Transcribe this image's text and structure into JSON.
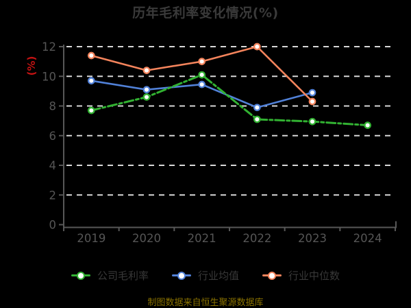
{
  "page": {
    "background": "#000000"
  },
  "footer": {
    "text": "制图数据来自恒生聚源数据库",
    "color": "#8a7200"
  },
  "colors": {
    "background": "#000000",
    "grid": "#d8d8d8",
    "axis": "#585858",
    "tick_label": "#565656",
    "title": "#3a3a3a",
    "legend_text": "#383838",
    "ylabel_red": "#c31212",
    "marker_fill": "#ffffff"
  },
  "chart_data": {
    "type": "line",
    "title": "历年毛利率变化情况(%)",
    "ylabel": "(%)",
    "xlabel": "",
    "x_categories": [
      "2019",
      "2020",
      "2021",
      "2022",
      "2023",
      "2024"
    ],
    "y_ticks": [
      0,
      2,
      4,
      6,
      8,
      10,
      12
    ],
    "ylim": [
      0,
      12
    ],
    "grid": "horizontal-dashed",
    "legend_position": "bottom",
    "series": [
      {
        "name": "公司毛利率",
        "color": "#32b232",
        "line_style": "dash-dot",
        "values": [
          7.7,
          8.6,
          10.1,
          7.1,
          6.95,
          6.7
        ]
      },
      {
        "name": "行业均值",
        "color": "#5181d8",
        "line_style": "solid",
        "values": [
          9.7,
          9.1,
          9.45,
          7.9,
          8.9,
          null
        ]
      },
      {
        "name": "行业中位数",
        "color": "#f4845c",
        "line_style": "solid",
        "values": [
          11.4,
          10.4,
          11.0,
          12.0,
          8.3,
          null
        ]
      }
    ]
  }
}
